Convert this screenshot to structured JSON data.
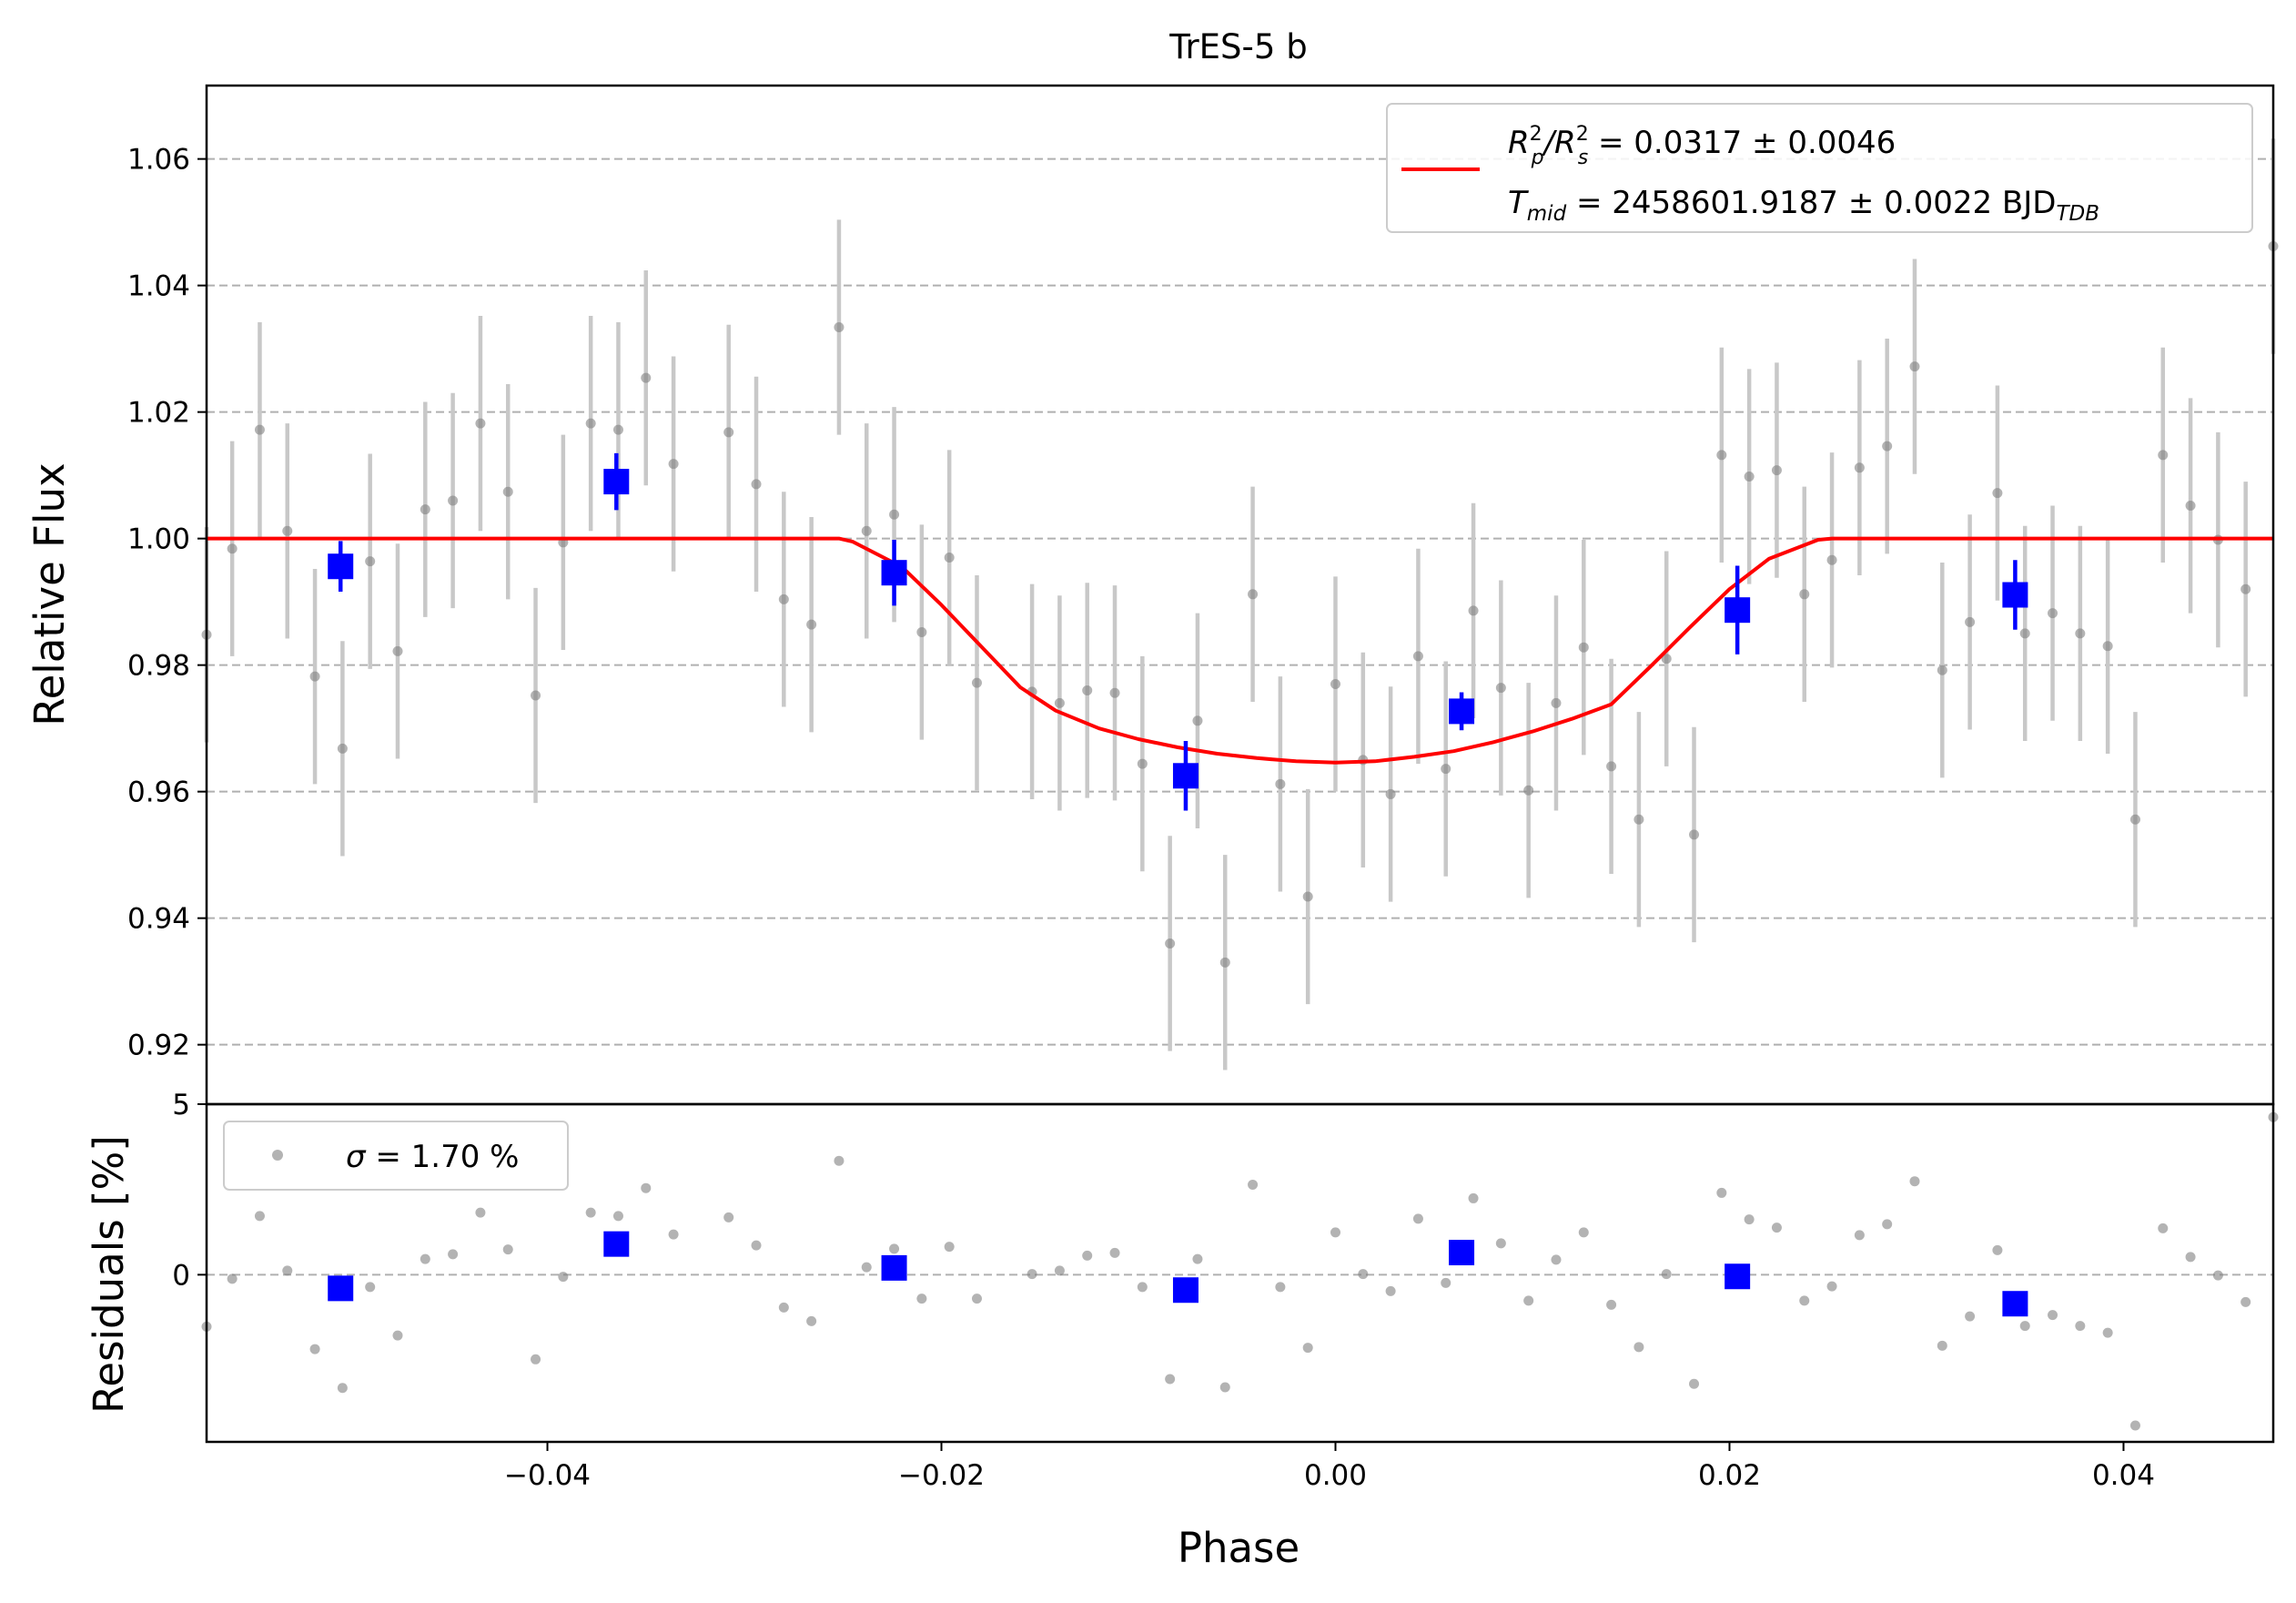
{
  "chart_data": {
    "type": "scatter",
    "title": "TrES-5 b",
    "xlabel": "Phase",
    "colors": {
      "model": "#ff0000",
      "binned": "#0000ff",
      "raw": "#808080",
      "raw_errorbar": "#c8c8c8",
      "grid": "#b0b0b0"
    },
    "top_panel": {
      "ylabel": "Relative Flux",
      "xlim": [
        -0.0573,
        0.0476
      ],
      "ylim": [
        0.9106,
        1.0716
      ],
      "yticks": [
        0.92,
        0.94,
        0.96,
        0.98,
        1.0,
        1.02,
        1.04,
        1.06
      ],
      "ytick_labels": [
        "0.92",
        "0.94",
        "0.96",
        "0.98",
        "1.00",
        "1.02",
        "1.04",
        "1.06"
      ],
      "grid": "horizontal dashed",
      "legend": {
        "placement": "upper right",
        "entries": [
          {
            "line1": "R_p^2/R_s^2 = 0.0317 ± 0.0046",
            "line1_parts": [
              "R",
              "2",
              "p",
              "/R",
              "2",
              "s",
              " = 0.0317 ± 0.0046"
            ],
            "line2": "T_mid = 2458601.9187 ± 0.0022 BJD_TDB",
            "line2_parts": [
              "T",
              "mid",
              " = 2458601.9187 ± 0.0022 BJD",
              "TDB"
            ]
          }
        ]
      },
      "model": {
        "name": "transit model",
        "x": [
          -0.0573,
          -0.0252,
          -0.0245,
          -0.022,
          -0.02,
          -0.018,
          -0.016,
          -0.0142,
          -0.012,
          -0.01,
          -0.008,
          -0.006,
          -0.004,
          -0.002,
          0.0,
          0.002,
          0.004,
          0.006,
          0.008,
          0.01,
          0.012,
          0.014,
          0.016,
          0.018,
          0.02,
          0.022,
          0.0245,
          0.0252,
          0.0476
        ],
        "y": [
          1.0,
          1.0,
          0.9995,
          0.9955,
          0.9895,
          0.983,
          0.9765,
          0.9728,
          0.97,
          0.9683,
          0.967,
          0.966,
          0.9653,
          0.9648,
          0.9646,
          0.9648,
          0.9655,
          0.9664,
          0.9678,
          0.9695,
          0.9715,
          0.9738,
          0.9798,
          0.986,
          0.992,
          0.9968,
          0.9998,
          1.0,
          1.0
        ]
      },
      "raw_points": {
        "x": [
          -0.0573,
          -0.056,
          -0.0546,
          -0.0532,
          -0.0518,
          -0.0504,
          -0.049,
          -0.0476,
          -0.0462,
          -0.0448,
          -0.0434,
          -0.042,
          -0.0406,
          -0.0392,
          -0.0378,
          -0.0364,
          -0.035,
          -0.0336,
          -0.0308,
          -0.0294,
          -0.028,
          -0.0266,
          -0.0252,
          -0.0238,
          -0.0224,
          -0.021,
          -0.0196,
          -0.0182,
          -0.0154,
          -0.014,
          -0.0126,
          -0.0112,
          -0.0098,
          -0.0084,
          -0.007,
          -0.0056,
          -0.0042,
          -0.0028,
          -0.0014,
          0.0,
          0.0014,
          0.0028,
          0.0042,
          0.0056,
          0.007,
          0.0084,
          0.0098,
          0.0112,
          0.0126,
          0.014,
          0.0154,
          0.0168,
          0.0182,
          0.0196,
          0.021,
          0.0224,
          0.0238,
          0.0252,
          0.0266,
          0.028,
          0.0294,
          0.0308,
          0.0322,
          0.0336,
          0.035,
          0.0364,
          0.0378,
          0.0392,
          0.0406,
          0.042,
          0.0434,
          0.0448,
          0.0462,
          0.0476
        ],
        "y": [
          0.9848,
          0.9984,
          1.0172,
          1.0012,
          0.9782,
          0.9668,
          0.9964,
          0.9822,
          1.0046,
          1.006,
          1.0182,
          1.0074,
          0.9752,
          0.9994,
          1.0182,
          1.0172,
          1.0254,
          1.0118,
          1.0168,
          1.0086,
          0.9904,
          0.9864,
          1.0334,
          1.0012,
          1.0038,
          0.9852,
          0.997,
          0.9772,
          0.9758,
          0.974,
          0.976,
          0.9756,
          0.9644,
          0.936,
          0.9712,
          0.933,
          0.9912,
          0.9612,
          0.9434,
          0.977,
          0.965,
          0.9596,
          0.9814,
          0.9636,
          0.9886,
          0.9764,
          0.9602,
          0.974,
          0.9828,
          0.964,
          0.9556,
          0.981,
          0.9532,
          1.0132,
          1.0098,
          1.0108,
          0.9912,
          0.9966,
          1.0112,
          1.0146,
          1.0272,
          0.9792,
          0.9868,
          1.0072,
          0.985,
          0.9882,
          0.985,
          0.983,
          0.9556,
          1.0132,
          1.0052,
          0.9998,
          0.992,
          1.0462
        ],
        "yerr": 0.017
      },
      "binned_points": {
        "x": [
          -0.0505,
          -0.0365,
          -0.0224,
          -0.0076,
          0.0064,
          0.0204,
          0.0345
        ],
        "y": [
          0.9956,
          1.009,
          0.9946,
          0.9625,
          0.9727,
          0.9887,
          0.9911
        ],
        "yerr": [
          0.004,
          0.0045,
          0.0052,
          0.0055,
          0.003,
          0.007,
          0.0055
        ]
      }
    },
    "bottom_panel": {
      "ylabel": "Residuals [%]",
      "xlim": [
        -0.0573,
        0.0476
      ],
      "ylim": [
        -4.9,
        5.0
      ],
      "yticks": [
        0,
        5
      ],
      "ytick_labels": [
        "0",
        "5"
      ],
      "xticks": [
        -0.04,
        -0.02,
        0.0,
        0.02,
        0.04
      ],
      "xtick_labels": [
        "−0.04",
        "−0.02",
        "0.00",
        "0.02",
        "0.04"
      ],
      "grid": "horizontal dashed at 0",
      "legend": {
        "placement": "upper left",
        "entries": [
          {
            "label": "σ = 1.70 %",
            "label_parts": [
              "σ",
              " = 1.70 %"
            ]
          }
        ]
      },
      "raw_residuals": {
        "x": [
          -0.0573,
          -0.056,
          -0.0546,
          -0.0532,
          -0.0518,
          -0.0504,
          -0.049,
          -0.0476,
          -0.0462,
          -0.0448,
          -0.0434,
          -0.042,
          -0.0406,
          -0.0392,
          -0.0378,
          -0.0364,
          -0.035,
          -0.0336,
          -0.0308,
          -0.0294,
          -0.028,
          -0.0266,
          -0.0252,
          -0.0238,
          -0.0224,
          -0.021,
          -0.0196,
          -0.0182,
          -0.0154,
          -0.014,
          -0.0126,
          -0.0112,
          -0.0098,
          -0.0084,
          -0.007,
          -0.0056,
          -0.0042,
          -0.0028,
          -0.0014,
          0.0,
          0.0014,
          0.0028,
          0.0042,
          0.0056,
          0.007,
          0.0084,
          0.0098,
          0.0112,
          0.0126,
          0.014,
          0.0154,
          0.0168,
          0.0182,
          0.0196,
          0.021,
          0.0224,
          0.0238,
          0.0252,
          0.0266,
          0.028,
          0.0294,
          0.0308,
          0.0322,
          0.0336,
          0.035,
          0.0364,
          0.0378,
          0.0392,
          0.0406,
          0.042,
          0.0434,
          0.0448,
          0.0462,
          0.0476
        ],
        "y": [
          -1.52,
          -0.12,
          1.72,
          0.12,
          -2.18,
          -3.32,
          -0.36,
          -1.78,
          0.46,
          0.6,
          1.82,
          0.74,
          -2.48,
          -0.06,
          1.82,
          1.72,
          2.54,
          1.18,
          1.68,
          0.86,
          -0.96,
          -1.36,
          3.34,
          0.22,
          0.76,
          -0.7,
          0.82,
          -0.7,
          0.02,
          0.12,
          0.56,
          0.64,
          -0.36,
          -3.06,
          0.46,
          -3.3,
          2.64,
          -0.36,
          -2.14,
          1.24,
          0.02,
          -0.48,
          1.64,
          -0.24,
          2.24,
          0.92,
          -0.76,
          0.44,
          1.24,
          -0.88,
          -2.12,
          0.02,
          -3.2,
          2.4,
          1.62,
          1.38,
          -0.76,
          -0.34,
          1.16,
          1.48,
          2.74,
          -2.08,
          -1.22,
          0.72,
          -1.5,
          -1.18,
          -1.5,
          -1.7,
          -4.42,
          1.36,
          0.52,
          -0.02,
          -0.8,
          4.62
        ]
      },
      "binned_residuals": {
        "x": [
          -0.0505,
          -0.0365,
          -0.0224,
          -0.0076,
          0.0064,
          0.0204,
          0.0345
        ],
        "y": [
          -0.4,
          0.9,
          0.2,
          -0.45,
          0.65,
          -0.05,
          -0.85
        ]
      }
    }
  }
}
